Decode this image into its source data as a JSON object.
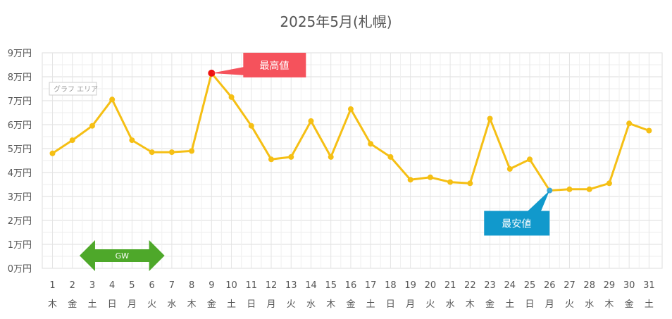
{
  "chart_data": {
    "type": "line",
    "title": "2025年5月(札幌)",
    "y_ticks": [
      "0万円",
      "1万円",
      "2万円",
      "3万円",
      "4万円",
      "5万円",
      "6万円",
      "7万円",
      "8万円",
      "9万円"
    ],
    "ylim": [
      0,
      90000
    ],
    "grid": true,
    "categories": [
      "1",
      "2",
      "3",
      "4",
      "5",
      "6",
      "7",
      "8",
      "9",
      "10",
      "11",
      "12",
      "13",
      "14",
      "15",
      "16",
      "17",
      "18",
      "19",
      "20",
      "21",
      "22",
      "23",
      "24",
      "25",
      "26",
      "27",
      "28",
      "29",
      "30",
      "31"
    ],
    "weekdays": [
      "木",
      "金",
      "土",
      "日",
      "月",
      "火",
      "水",
      "木",
      "金",
      "土",
      "日",
      "月",
      "火",
      "水",
      "木",
      "金",
      "土",
      "日",
      "月",
      "火",
      "水",
      "木",
      "金",
      "土",
      "日",
      "月",
      "火",
      "水",
      "木",
      "金",
      "土"
    ],
    "series": [
      {
        "values": [
          48000,
          53500,
          59500,
          70500,
          53500,
          48500,
          48500,
          49000,
          81500,
          71500,
          59500,
          45500,
          46500,
          61500,
          46500,
          66500,
          52000,
          46500,
          37000,
          38000,
          36000,
          35500,
          62500,
          41500,
          45500,
          32500,
          33000,
          33000,
          35500,
          60500,
          57500
        ],
        "color": "#f5bf14"
      }
    ],
    "annotations": {
      "max": {
        "label": "最高値",
        "day": "9",
        "color": "#f5525c",
        "point_color": "#ee1111"
      },
      "min": {
        "label": "最安値",
        "day": "26",
        "color": "#1199cc",
        "point_color": "#3fa8d8"
      },
      "area_label": "グラフ エリア",
      "gw": {
        "label": "GW",
        "from_day": "3",
        "to_day": "6",
        "color": "#4ea82a"
      }
    }
  }
}
